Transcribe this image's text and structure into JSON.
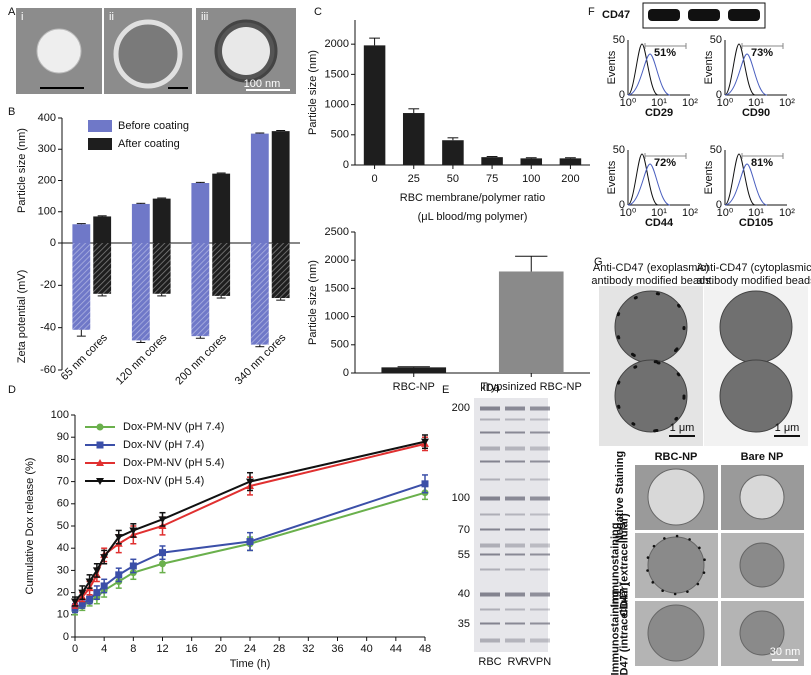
{
  "panels": [
    "A",
    "B",
    "C",
    "D",
    "E",
    "F",
    "G"
  ],
  "panel_a": {
    "labels": [
      "i",
      "ii",
      "iii"
    ],
    "scale": "100 nm"
  },
  "chart_data": [
    {
      "type": "bar",
      "categories": [
        "65 nm cores",
        "120 nm cores",
        "200 nm cores",
        "340 nm cores"
      ],
      "series": [
        {
          "name": "Before coating",
          "color": "#6f78c8",
          "values": [
            60,
            125,
            192,
            350
          ],
          "errors": [
            2,
            2,
            2,
            2
          ],
          "zeta": [
            -41,
            -46,
            -44,
            -48
          ],
          "zeta_errors": [
            3,
            1,
            1,
            1
          ]
        },
        {
          "name": "After coating",
          "color": "#1e1e1e",
          "values": [
            85,
            142,
            222,
            358
          ],
          "errors": [
            2,
            2,
            2,
            2
          ],
          "zeta": [
            -24,
            -24,
            -25,
            -26
          ],
          "zeta_errors": [
            1,
            1,
            1,
            1
          ]
        }
      ],
      "ylabel": "Particle size (nm)",
      "ylim": [
        0,
        400
      ],
      "yticks": [
        0,
        100,
        200,
        300,
        400
      ],
      "y2label": "Zeta potential (mV)",
      "y2lim": [
        -60,
        0
      ],
      "y2ticks": [
        -20,
        -40,
        -60
      ]
    },
    {
      "type": "bar",
      "categories": [
        "0",
        "25",
        "50",
        "75",
        "100",
        "200"
      ],
      "values": [
        1980,
        860,
        410,
        130,
        110,
        110
      ],
      "errors": [
        120,
        70,
        40,
        10,
        10,
        10
      ],
      "color": "#1e1e1e",
      "ylabel": "Particle size (nm)",
      "xlabel": [
        "RBC membrane/polymer ratio",
        "(μL blood/mg polymer)"
      ],
      "ylim": [
        0,
        2400
      ],
      "yticks": [
        0,
        500,
        1000,
        1500,
        2000
      ]
    },
    {
      "type": "bar",
      "categories": [
        "RBC-NP",
        "Trypsinized RBC-NP"
      ],
      "values": [
        100,
        1800
      ],
      "errors": [
        10,
        270
      ],
      "colors": [
        "#1e1e1e",
        "#8a8a8a"
      ],
      "ylabel": "Particle size (nm)",
      "ylim": [
        0,
        2500
      ],
      "yticks": [
        0,
        500,
        1000,
        1500,
        2000,
        2500
      ]
    },
    {
      "type": "line",
      "x": [
        0,
        1,
        2,
        3,
        4,
        6,
        8,
        12,
        24,
        48
      ],
      "series": [
        {
          "name": "Dox-PM-NV (pH 7.4)",
          "color": "#6ab04c",
          "marker": "circle",
          "values": [
            12,
            14,
            16,
            18,
            21,
            25,
            29,
            33,
            42,
            65
          ],
          "errors": [
            2,
            2,
            2,
            3,
            3,
            3,
            3,
            4,
            3,
            3
          ]
        },
        {
          "name": "Dox-NV (pH 7.4)",
          "color": "#3b4fa8",
          "marker": "square",
          "values": [
            13,
            15,
            17,
            20,
            23,
            28,
            32,
            38,
            43,
            69
          ],
          "errors": [
            2,
            2,
            2,
            3,
            3,
            3,
            3,
            3,
            4,
            4
          ]
        },
        {
          "name": "Dox-PM-NV (pH 5.4)",
          "color": "#e03030",
          "marker": "triangle",
          "values": [
            15,
            18,
            22,
            28,
            37,
            42,
            46,
            50,
            68,
            87
          ],
          "errors": [
            2,
            2,
            3,
            3,
            3,
            4,
            4,
            4,
            4,
            3
          ]
        },
        {
          "name": "Dox-NV (pH 5.4)",
          "color": "#111111",
          "marker": "triangle-down",
          "values": [
            16,
            20,
            25,
            30,
            36,
            45,
            48,
            53,
            70,
            88
          ],
          "errors": [
            2,
            3,
            3,
            3,
            3,
            3,
            3,
            3,
            4,
            3
          ]
        }
      ],
      "xlabel": "Time (h)",
      "ylabel": "Cumulative Dox release (%)",
      "xlim": [
        0,
        48
      ],
      "xticks": [
        0,
        4,
        8,
        12,
        16,
        20,
        24,
        28,
        32,
        36,
        40,
        44,
        48
      ],
      "ylim": [
        0,
        100
      ],
      "yticks": [
        0,
        10,
        20,
        30,
        40,
        50,
        60,
        70,
        80,
        90,
        100
      ],
      "legend": "upper left"
    }
  ],
  "gel": {
    "unit": "kDa",
    "markers": [
      "200",
      "100",
      "70",
      "55",
      "40",
      "35"
    ],
    "lanes": [
      "RBC",
      "RV",
      "RVPN"
    ]
  },
  "flow": {
    "blot": "CD47",
    "ylabel": "Events",
    "yticks": [
      "50",
      "0"
    ],
    "xticks": [
      "10⁰",
      "10¹",
      "10²"
    ],
    "panels": [
      {
        "marker": "CD29",
        "percent": "51%"
      },
      {
        "marker": "CD90",
        "percent": "73%"
      },
      {
        "marker": "CD44",
        "percent": "72%"
      },
      {
        "marker": "CD105",
        "percent": "81%"
      }
    ]
  },
  "panel_g": {
    "beads": [
      [
        "Anti-CD47 (exoplasmic)",
        "antibody modified beads"
      ],
      [
        "Anti-CD47 (cytoplasmic)",
        "antibody modified beads"
      ]
    ],
    "bead_scale": "1 μm",
    "columns": [
      "RBC-NP",
      "Bare NP"
    ],
    "rows": [
      [
        "Negative Staining"
      ],
      [
        "Immunostaining",
        "CD47 (extracellular)"
      ],
      [
        "Immunostaining",
        "CD47 (intracellular)"
      ]
    ],
    "scale": "30 nm"
  }
}
